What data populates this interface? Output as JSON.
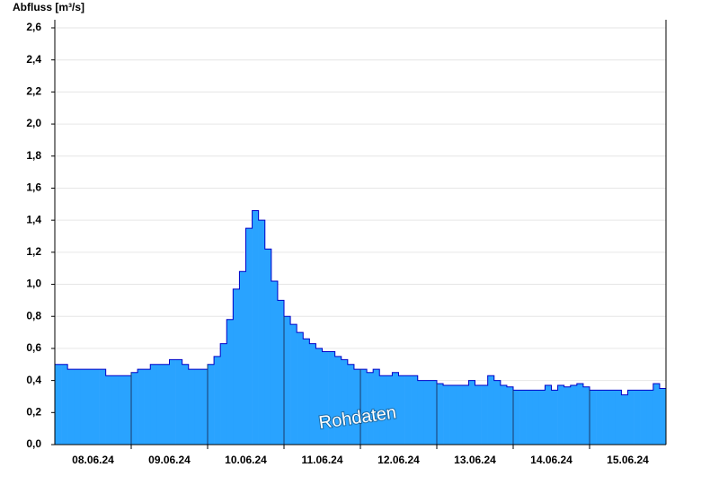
{
  "chart_data": {
    "type": "area",
    "y_label": "Abfluss [m³/s]",
    "annotation": "Rohdaten",
    "color": "#29a3ff",
    "line_color": "#0000c8",
    "values": [
      0.5,
      0.5,
      0.47,
      0.47,
      0.47,
      0.47,
      0.47,
      0.47,
      0.43,
      0.43,
      0.43,
      0.43,
      0.45,
      0.47,
      0.47,
      0.5,
      0.5,
      0.5,
      0.53,
      0.53,
      0.5,
      0.47,
      0.47,
      0.47,
      0.5,
      0.55,
      0.63,
      0.78,
      0.97,
      1.08,
      1.35,
      1.46,
      1.4,
      1.22,
      1.02,
      0.9,
      0.8,
      0.75,
      0.7,
      0.66,
      0.63,
      0.6,
      0.58,
      0.58,
      0.55,
      0.53,
      0.5,
      0.47,
      0.47,
      0.45,
      0.47,
      0.43,
      0.43,
      0.45,
      0.43,
      0.43,
      0.43,
      0.4,
      0.4,
      0.4,
      0.38,
      0.37,
      0.37,
      0.37,
      0.37,
      0.4,
      0.37,
      0.37,
      0.43,
      0.4,
      0.37,
      0.36,
      0.34,
      0.34,
      0.34,
      0.34,
      0.34,
      0.37,
      0.34,
      0.37,
      0.36,
      0.37,
      0.38,
      0.36,
      0.34,
      0.34,
      0.34,
      0.34,
      0.34,
      0.31,
      0.34,
      0.34,
      0.34,
      0.34,
      0.38,
      0.35
    ],
    "xlim": [
      0,
      96
    ],
    "xticks": [
      {
        "value": 6,
        "label": "08.06.24"
      },
      {
        "value": 18,
        "label": "09.06.24"
      },
      {
        "value": 30,
        "label": "10.06.24"
      },
      {
        "value": 42,
        "label": "11.06.24"
      },
      {
        "value": 54,
        "label": "12.06.24"
      },
      {
        "value": 66,
        "label": "13.06.24"
      },
      {
        "value": 78,
        "label": "14.06.24"
      },
      {
        "value": 90,
        "label": "15.06.24"
      }
    ],
    "ylim": [
      0,
      2.6
    ],
    "yticks": [
      {
        "value": 0,
        "label": "0,0"
      },
      {
        "value": 0.2,
        "label": "0,2"
      },
      {
        "value": 0.4,
        "label": "0,4"
      },
      {
        "value": 0.6,
        "label": "0,6"
      },
      {
        "value": 0.8,
        "label": "0,8"
      },
      {
        "value": 1.0,
        "label": "1,0"
      },
      {
        "value": 1.2,
        "label": "1,2"
      },
      {
        "value": 1.4,
        "label": "1,4"
      },
      {
        "value": 1.6,
        "label": "1,6"
      },
      {
        "value": 1.8,
        "label": "1,8"
      },
      {
        "value": 2.0,
        "label": "2,0"
      },
      {
        "value": 2.2,
        "label": "2,2"
      },
      {
        "value": 2.4,
        "label": "2,4"
      },
      {
        "value": 2.6,
        "label": "2,6"
      }
    ],
    "grid": true
  }
}
